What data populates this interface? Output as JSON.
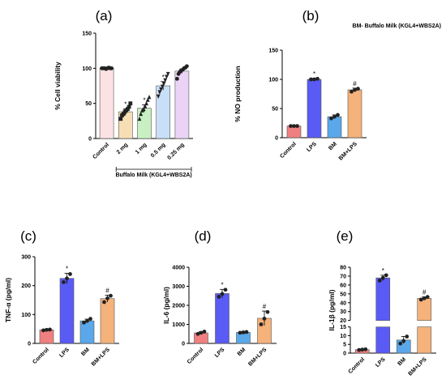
{
  "header_note": "BM- Buffalo Milk (KGL4+WBS2A)",
  "chart_data": [
    {
      "id": "a",
      "panel_label": "(a)",
      "type": "bar",
      "ylabel": "% Cell viability",
      "categories": [
        "Control",
        "2 mg",
        "1 mg",
        "0.5 mg",
        "0.25 mg"
      ],
      "values": [
        100,
        38,
        43,
        75,
        96
      ],
      "errors": [
        1,
        4,
        5,
        6,
        3
      ],
      "significance": [
        "",
        "*",
        "*",
        "*",
        ""
      ],
      "colors": [
        "#fde2e4",
        "#f7deb5",
        "#c9f0c3",
        "#c8dff7",
        "#ead3f5"
      ],
      "points": [
        [
          100,
          100,
          100,
          99,
          100,
          101,
          100,
          100
        ],
        [
          28,
          33,
          35,
          38,
          40,
          42,
          45,
          50
        ],
        [
          28,
          35,
          40,
          42,
          46,
          50,
          55,
          59
        ],
        [
          60,
          66,
          70,
          74,
          78,
          83,
          88,
          92
        ],
        [
          85,
          92,
          95,
          97,
          98,
          100,
          101,
          103
        ]
      ],
      "point_markers": [
        "circle",
        "square",
        "triangle",
        "triangle-down",
        "circle"
      ],
      "ylim": [
        0,
        150
      ],
      "yticks": [
        0,
        50,
        100,
        150
      ],
      "group_label": "Buffalo Milk (KGL4+WBS2A)",
      "grid": false
    },
    {
      "id": "b",
      "panel_label": "(b)",
      "type": "bar",
      "ylabel": "% NO production",
      "categories": [
        "Control",
        "LPS",
        "BM",
        "BM+LPS"
      ],
      "values": [
        20,
        100,
        36,
        82
      ],
      "errors": [
        1,
        1.5,
        3,
        3
      ],
      "significance": [
        "",
        "*",
        "",
        "#"
      ],
      "colors": [
        "#f08080",
        "#5a5af5",
        "#5aa8ea",
        "#f5b27a"
      ],
      "points": [
        [
          20,
          20,
          20
        ],
        [
          100,
          100,
          101
        ],
        [
          33,
          36,
          39
        ],
        [
          79,
          82,
          84
        ]
      ],
      "ylim": [
        0,
        150
      ],
      "yticks": [
        0,
        50,
        100,
        150
      ],
      "grid": false
    },
    {
      "id": "c",
      "panel_label": "(c)",
      "type": "bar",
      "ylabel": "TNF-α (pg/ml)",
      "categories": [
        "Control",
        "LPS",
        "BM",
        "BM+LPS"
      ],
      "values": [
        47,
        225,
        78,
        155
      ],
      "errors": [
        2,
        18,
        6,
        12
      ],
      "significance": [
        "",
        "*",
        "",
        "#"
      ],
      "colors": [
        "#f08080",
        "#5a5af5",
        "#5aa8ea",
        "#f5b27a"
      ],
      "points": [
        [
          45,
          47,
          48
        ],
        [
          212,
          225,
          240
        ],
        [
          72,
          78,
          85
        ],
        [
          143,
          156,
          165
        ]
      ],
      "ylim": [
        0,
        300
      ],
      "yticks": [
        0,
        100,
        200,
        300
      ],
      "grid": false
    },
    {
      "id": "d",
      "panel_label": "(d)",
      "type": "bar",
      "ylabel": "IL-6 (pg/ml)",
      "categories": [
        "Control",
        "LPS",
        "BM",
        "BM+LPS"
      ],
      "values": [
        550,
        2620,
        580,
        1320
      ],
      "errors": [
        60,
        220,
        40,
        380
      ],
      "significance": [
        "",
        "*",
        "",
        "#"
      ],
      "colors": [
        "#f08080",
        "#5a5af5",
        "#5aa8ea",
        "#f5b27a"
      ],
      "points": [
        [
          500,
          560,
          620
        ],
        [
          2450,
          2600,
          2820
        ],
        [
          560,
          580,
          600
        ],
        [
          1000,
          1300,
          1650
        ]
      ],
      "ylim": [
        0,
        4000
      ],
      "yticks": [
        0,
        1000,
        2000,
        3000,
        4000
      ],
      "grid": false
    },
    {
      "id": "e",
      "panel_label": "(e)",
      "type": "bar",
      "ylabel": "IL-1β (pg/ml)",
      "categories": [
        "Control",
        "LPS",
        "BM",
        "BM+LPS"
      ],
      "values": [
        2,
        68,
        7.5,
        45
      ],
      "errors": [
        0.3,
        3,
        2,
        1.5
      ],
      "significance": [
        "",
        "*",
        "",
        "#"
      ],
      "colors": [
        "#f08080",
        "#5a5af5",
        "#5aa8ea",
        "#f5b27a"
      ],
      "points": [
        [
          1.8,
          2.0,
          2.2
        ],
        [
          65,
          68,
          71
        ],
        [
          5.5,
          7,
          9.5
        ],
        [
          43.5,
          45,
          46.5
        ]
      ],
      "broken_axis": {
        "lower": [
          0,
          15
        ],
        "upper": [
          20,
          80
        ]
      },
      "yticks_lower": [
        0,
        5,
        10,
        15
      ],
      "yticks_upper": [
        20,
        30,
        40,
        50,
        60,
        70,
        80
      ],
      "grid": false
    }
  ]
}
